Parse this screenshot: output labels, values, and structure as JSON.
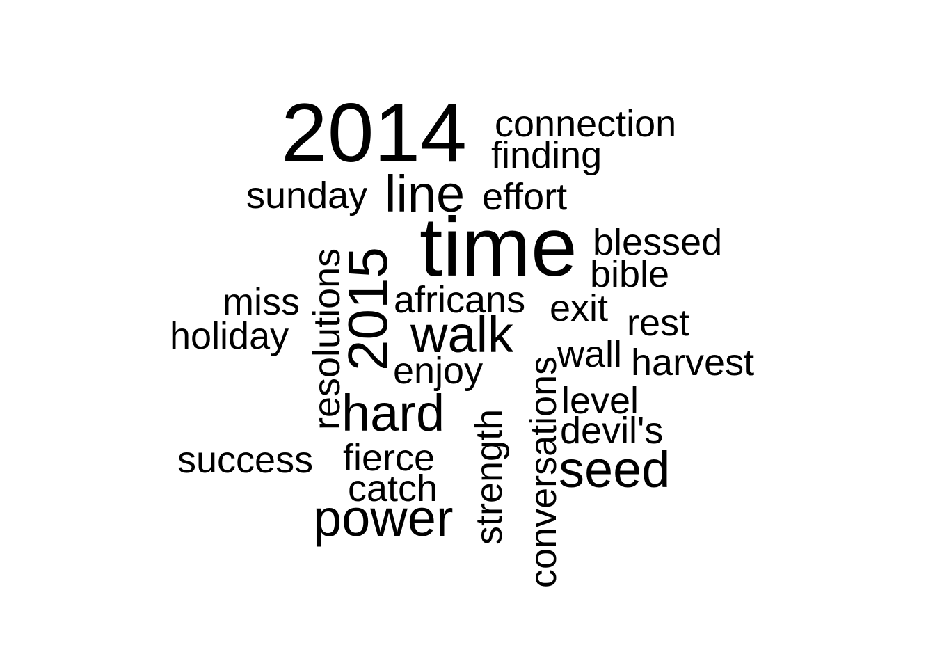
{
  "cloud": {
    "text_color": "#000000",
    "background": "#ffffff",
    "words": [
      {
        "text": "2014"
      },
      {
        "text": "connection"
      },
      {
        "text": "finding"
      },
      {
        "text": "sunday"
      },
      {
        "text": "line"
      },
      {
        "text": "effort"
      },
      {
        "text": "time"
      },
      {
        "text": "blessed"
      },
      {
        "text": "bible"
      },
      {
        "text": "resolutions"
      },
      {
        "text": "2015"
      },
      {
        "text": "miss"
      },
      {
        "text": "africans"
      },
      {
        "text": "exit"
      },
      {
        "text": "holiday"
      },
      {
        "text": "walk"
      },
      {
        "text": "rest"
      },
      {
        "text": "wall"
      },
      {
        "text": "harvest"
      },
      {
        "text": "enjoy"
      },
      {
        "text": "conversations"
      },
      {
        "text": "hard"
      },
      {
        "text": "level"
      },
      {
        "text": "strength"
      },
      {
        "text": "devil's"
      },
      {
        "text": "success"
      },
      {
        "text": "fierce"
      },
      {
        "text": "seed"
      },
      {
        "text": "catch"
      },
      {
        "text": "power"
      }
    ]
  }
}
